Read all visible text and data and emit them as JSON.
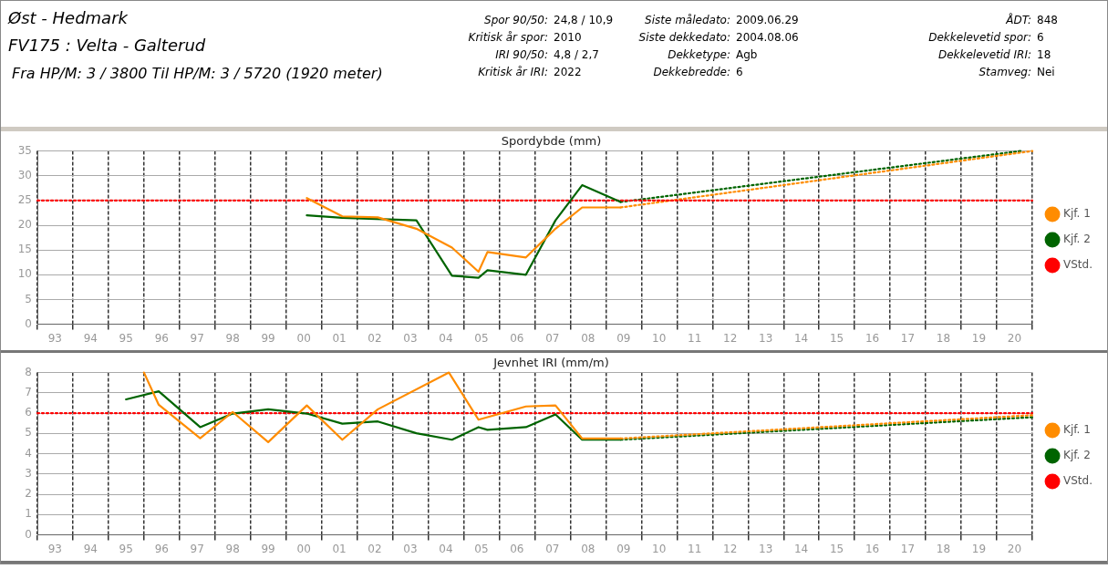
{
  "chart_data": [
    {
      "type": "other",
      "title": "Øst - Hedmark",
      "subtitle": "FV175 : Velta - Galterud",
      "annotations": [
        "Fra HP/M: 3 / 3800 Til HP/M: 3 / 5720 (1920 meter)",
        "Spor 90/50:",
        "24,8 / 10,9",
        "Kritisk år spor:",
        "2010",
        "IRI 90/50:",
        "4,8 / 2,7",
        "Kritisk år IRI:",
        "2022",
        "Siste måledato:",
        "2009.06.29",
        "Siste dekkedato:",
        "2004.08.06",
        "Dekketype:",
        "Agb",
        "Dekkebredde:",
        "6",
        "ÅDT:",
        "848",
        "Dekkelevetid spor:",
        "6",
        "Dekkelevetid IRI:",
        "18",
        "Stamveg:",
        "Nei"
      ]
    },
    {
      "type": "line",
      "title": "Spordybde (mm)",
      "xlim": [
        "1993",
        "2021"
      ],
      "ylim": [
        0,
        35
      ],
      "yticks": [
        0,
        5,
        10,
        15,
        20,
        25,
        30,
        35
      ],
      "xticks": [
        {
          "value": "1993",
          "label": null
        },
        {
          "value": "1993-07",
          "label": "93"
        },
        {
          "value": "1994",
          "label": null
        },
        {
          "value": "1994-07",
          "label": "94"
        },
        {
          "value": "1995",
          "label": null
        },
        {
          "value": "1995-07",
          "label": "95"
        },
        {
          "value": "1996",
          "label": null
        },
        {
          "value": "1996-07",
          "label": "96"
        },
        {
          "value": "1997",
          "label": null
        },
        {
          "value": "1997-07",
          "label": "97"
        },
        {
          "value": "1998",
          "label": null
        },
        {
          "value": "1998-07",
          "label": "98"
        },
        {
          "value": "1999",
          "label": null
        },
        {
          "value": "1999-07",
          "label": "99"
        },
        {
          "value": "2000",
          "label": null
        },
        {
          "value": "2000-07",
          "label": "00"
        },
        {
          "value": "2001",
          "label": null
        },
        {
          "value": "2001-07",
          "label": "01"
        },
        {
          "value": "2002",
          "label": null
        },
        {
          "value": "2002-07",
          "label": "02"
        },
        {
          "value": "2003",
          "label": null
        },
        {
          "value": "2003-07",
          "label": "03"
        },
        {
          "value": "2004",
          "label": null
        },
        {
          "value": "2004-07",
          "label": "04"
        },
        {
          "value": "2005",
          "label": null
        },
        {
          "value": "2005-07",
          "label": "05"
        },
        {
          "value": "2006",
          "label": null
        },
        {
          "value": "2006-07",
          "label": "06"
        },
        {
          "value": "2007",
          "label": null
        },
        {
          "value": "2007-07",
          "label": "07"
        },
        {
          "value": "2008",
          "label": null
        },
        {
          "value": "2008-07",
          "label": "08"
        },
        {
          "value": "2009",
          "label": null
        },
        {
          "value": "2009-07",
          "label": "09"
        },
        {
          "value": "2010",
          "label": null
        },
        {
          "value": "2010-07",
          "label": "10"
        },
        {
          "value": "2011",
          "label": null
        },
        {
          "value": "2011-07",
          "label": "11"
        },
        {
          "value": "2012",
          "label": null
        },
        {
          "value": "2012-07",
          "label": "12"
        },
        {
          "value": "2013",
          "label": null
        },
        {
          "value": "2013-07",
          "label": "13"
        },
        {
          "value": "2014",
          "label": null
        },
        {
          "value": "2014-07",
          "label": "14"
        },
        {
          "value": "2015",
          "label": null
        },
        {
          "value": "2015-07",
          "label": "15"
        },
        {
          "value": "2016",
          "label": null
        },
        {
          "value": "2016-07",
          "label": "16"
        },
        {
          "value": "2017",
          "label": null
        },
        {
          "value": "2017-07",
          "label": "17"
        },
        {
          "value": "2018",
          "label": null
        },
        {
          "value": "2018-07",
          "label": "18"
        },
        {
          "value": "2019",
          "label": null
        },
        {
          "value": "2019-07",
          "label": "19"
        },
        {
          "value": "2020",
          "label": null
        },
        {
          "value": "2020-07",
          "label": "20"
        },
        {
          "value": "2021",
          "label": null
        }
      ],
      "grid": true,
      "legend": "right",
      "marker": "none",
      "line_style": "solid",
      "series": [
        {
          "name": "Kjf. 1",
          "color": "#ff8c00",
          "x": [
            "2000-08",
            "2001-08",
            "2002-08",
            "2003-09",
            "2004-09",
            "2005-06",
            "2005-09",
            "2006-10",
            "2007-08",
            "2008-05",
            "2009-06"
          ],
          "values": [
            25.5,
            21.8,
            21.6,
            19.3,
            15.5,
            10.6,
            14.6,
            13.5,
            19.3,
            23.6,
            23.6
          ]
        },
        {
          "name": "Kjf. 2",
          "color": "#006400",
          "x": [
            "2000-08",
            "2001-08",
            "2003-09",
            "2004-09",
            "2005-06",
            "2005-09",
            "2006-10",
            "2007-08",
            "2008-05",
            "2009-06"
          ],
          "values": [
            22.0,
            21.5,
            21.0,
            9.8,
            9.4,
            10.9,
            10.0,
            21.0,
            28.1,
            24.7
          ]
        },
        {
          "name": "VStd.",
          "color": "#ff0000",
          "line_style": "dotted",
          "x": [
            "1993",
            "2021"
          ],
          "values": [
            25,
            25
          ]
        },
        {
          "color": "#ff8c00",
          "line_style": "dotted",
          "x": [
            "2009-06",
            "2021"
          ],
          "values": [
            23.6,
            35
          ]
        },
        {
          "color": "#006400",
          "line_style": "dotted",
          "x": [
            "2009-06",
            "2020-09"
          ],
          "values": [
            24.7,
            35
          ]
        }
      ]
    },
    {
      "type": "line",
      "title": "Jevnhet IRI (mm/m)",
      "xlim": [
        "1993",
        "2021"
      ],
      "ylim": [
        0,
        8
      ],
      "yticks": [
        0,
        1,
        2,
        3,
        4,
        5,
        6,
        7,
        8
      ],
      "xticks": [
        {
          "value": "1993",
          "label": null
        },
        {
          "value": "1993-07",
          "label": "93"
        },
        {
          "value": "1994",
          "label": null
        },
        {
          "value": "1994-07",
          "label": "94"
        },
        {
          "value": "1995",
          "label": null
        },
        {
          "value": "1995-07",
          "label": "95"
        },
        {
          "value": "1996",
          "label": null
        },
        {
          "value": "1996-07",
          "label": "96"
        },
        {
          "value": "1997",
          "label": null
        },
        {
          "value": "1997-07",
          "label": "97"
        },
        {
          "value": "1998",
          "label": null
        },
        {
          "value": "1998-07",
          "label": "98"
        },
        {
          "value": "1999",
          "label": null
        },
        {
          "value": "1999-07",
          "label": "99"
        },
        {
          "value": "2000",
          "label": null
        },
        {
          "value": "2000-07",
          "label": "00"
        },
        {
          "value": "2001",
          "label": null
        },
        {
          "value": "2001-07",
          "label": "01"
        },
        {
          "value": "2002",
          "label": null
        },
        {
          "value": "2002-07",
          "label": "02"
        },
        {
          "value": "2003",
          "label": null
        },
        {
          "value": "2003-07",
          "label": "03"
        },
        {
          "value": "2004",
          "label": null
        },
        {
          "value": "2004-07",
          "label": "04"
        },
        {
          "value": "2005",
          "label": null
        },
        {
          "value": "2005-07",
          "label": "05"
        },
        {
          "value": "2006",
          "label": null
        },
        {
          "value": "2006-07",
          "label": "06"
        },
        {
          "value": "2007",
          "label": null
        },
        {
          "value": "2007-07",
          "label": "07"
        },
        {
          "value": "2008",
          "label": null
        },
        {
          "value": "2008-07",
          "label": "08"
        },
        {
          "value": "2009",
          "label": null
        },
        {
          "value": "2009-07",
          "label": "09"
        },
        {
          "value": "2010",
          "label": null
        },
        {
          "value": "2010-07",
          "label": "10"
        },
        {
          "value": "2011",
          "label": null
        },
        {
          "value": "2011-07",
          "label": "11"
        },
        {
          "value": "2012",
          "label": null
        },
        {
          "value": "2012-07",
          "label": "12"
        },
        {
          "value": "2013",
          "label": null
        },
        {
          "value": "2013-07",
          "label": "13"
        },
        {
          "value": "2014",
          "label": null
        },
        {
          "value": "2014-07",
          "label": "14"
        },
        {
          "value": "2015",
          "label": null
        },
        {
          "value": "2015-07",
          "label": "15"
        },
        {
          "value": "2016",
          "label": null
        },
        {
          "value": "2016-07",
          "label": "16"
        },
        {
          "value": "2017",
          "label": null
        },
        {
          "value": "2017-07",
          "label": "17"
        },
        {
          "value": "2018",
          "label": null
        },
        {
          "value": "2018-07",
          "label": "18"
        },
        {
          "value": "2019",
          "label": null
        },
        {
          "value": "2019-07",
          "label": "19"
        },
        {
          "value": "2020",
          "label": null
        },
        {
          "value": "2020-07",
          "label": "20"
        },
        {
          "value": "2021",
          "label": null
        }
      ],
      "grid": true,
      "legend": "right",
      "marker": "none",
      "line_style": "solid",
      "series": [
        {
          "name": "Kjf. 1",
          "color": "#ff8c00",
          "x": [
            "1996-01",
            "1996-06",
            "1997-08",
            "1998-07",
            "1999-07",
            "2000-08",
            "2001-08",
            "2002-08",
            "2004-08",
            "2005-06",
            "2006-10",
            "2007-08",
            "2008-05",
            "2009-06"
          ],
          "values": [
            8,
            6.41,
            4.76,
            6.06,
            4.57,
            6.38,
            4.69,
            6.19,
            8,
            5.68,
            6.33,
            6.38,
            4.75,
            4.75
          ]
        },
        {
          "name": "Kjf. 2",
          "color": "#006400",
          "x": [
            "1995-07",
            "1996-06",
            "1997-08",
            "1998-07",
            "1999-07",
            "2000-08",
            "2001-08",
            "2002-08",
            "2003-09",
            "2004-09",
            "2005-06",
            "2005-09",
            "2006-10",
            "2007-08",
            "2008-05",
            "2009-06"
          ],
          "values": [
            6.68,
            7.08,
            5.31,
            5.98,
            6.19,
            5.98,
            5.48,
            5.59,
            5.01,
            4.69,
            5.31,
            5.18,
            5.31,
            5.94,
            4.69,
            4.69
          ]
        },
        {
          "name": "VStd.",
          "color": "#ff0000",
          "line_style": "dotted",
          "x": [
            "1993",
            "2021"
          ],
          "values": [
            6,
            6
          ]
        },
        {
          "color": "#ff8c00",
          "line_style": "dotted",
          "x": [
            "2009-06",
            "2021"
          ],
          "values": [
            4.75,
            5.9
          ]
        },
        {
          "color": "#006400",
          "line_style": "dotted",
          "x": [
            "2009-06",
            "2021"
          ],
          "values": [
            4.69,
            5.8
          ]
        }
      ]
    }
  ]
}
